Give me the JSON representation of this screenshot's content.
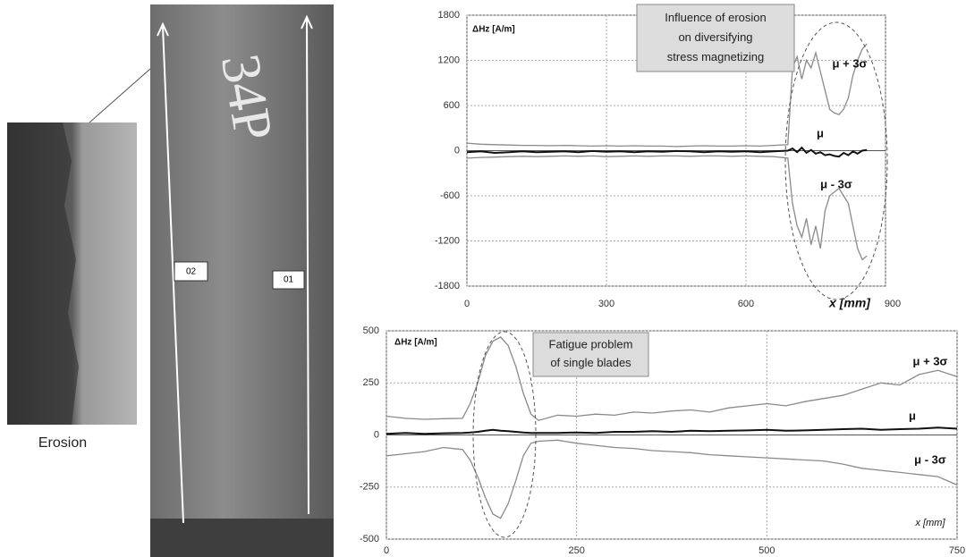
{
  "figure": {
    "caption": "Erosion",
    "marking": "34P",
    "path_labels": [
      "02",
      "01"
    ]
  },
  "chart_data": [
    {
      "type": "line",
      "ylabel": "ΔHz [A/m]",
      "xlabel": "x [mm]",
      "annotation": [
        "Influence of erosion",
        "on diversifying",
        "stress  magnetizing"
      ],
      "xlim": [
        0,
        900
      ],
      "ylim": [
        -1800,
        1800
      ],
      "xticks": [
        0,
        300,
        600,
        900
      ],
      "yticks": [
        1800,
        1200,
        600,
        0,
        -600,
        -1200,
        -1800
      ],
      "grid": true,
      "x": [
        0,
        30,
        60,
        90,
        120,
        150,
        180,
        210,
        240,
        270,
        300,
        330,
        360,
        390,
        420,
        450,
        480,
        510,
        540,
        570,
        600,
        630,
        660,
        690,
        700,
        710,
        720,
        730,
        740,
        750,
        760,
        770,
        780,
        790,
        800,
        810,
        820,
        830,
        840,
        850,
        860
      ],
      "series": [
        {
          "name": "μ + 3σ",
          "color": "#8a8a8a",
          "values": [
            100,
            85,
            80,
            75,
            70,
            70,
            65,
            70,
            65,
            60,
            65,
            60,
            65,
            60,
            60,
            55,
            60,
            65,
            60,
            60,
            65,
            60,
            70,
            80,
            1100,
            1250,
            950,
            1200,
            1100,
            1300,
            1050,
            800,
            550,
            500,
            480,
            550,
            700,
            1000,
            1200,
            1350,
            1420
          ]
        },
        {
          "name": "μ",
          "color": "#111111",
          "values": [
            -20,
            -10,
            -30,
            -20,
            -10,
            -20,
            -15,
            -10,
            -20,
            -5,
            -15,
            -10,
            -20,
            -10,
            -15,
            -5,
            -10,
            -20,
            -10,
            -15,
            -10,
            -20,
            -10,
            0,
            30,
            -20,
            40,
            -30,
            10,
            -40,
            -20,
            -60,
            -50,
            -70,
            -80,
            -30,
            -60,
            -10,
            -40,
            0,
            10
          ]
        },
        {
          "name": "μ - 3σ",
          "color": "#8a8a8a",
          "values": [
            -100,
            -90,
            -85,
            -80,
            -75,
            -80,
            -75,
            -70,
            -75,
            -70,
            -80,
            -75,
            -70,
            -75,
            -70,
            -70,
            -75,
            -70,
            -70,
            -75,
            -70,
            -75,
            -80,
            -100,
            -700,
            -1000,
            -1150,
            -900,
            -1250,
            -1000,
            -1300,
            -800,
            -600,
            -550,
            -500,
            -600,
            -700,
            -1000,
            -1300,
            -1450,
            -1400
          ]
        }
      ]
    },
    {
      "type": "line",
      "ylabel": "ΔHz [A/m]",
      "xlabel": "x [mm]",
      "annotation": [
        "Fatigue problem",
        "of single blades"
      ],
      "xlim": [
        0,
        750
      ],
      "ylim": [
        -500,
        500
      ],
      "xticks": [
        0,
        250,
        500,
        750
      ],
      "yticks": [
        500,
        250,
        0,
        -250,
        -500
      ],
      "grid": true,
      "x": [
        0,
        25,
        50,
        75,
        100,
        110,
        120,
        130,
        140,
        150,
        160,
        170,
        180,
        190,
        200,
        225,
        250,
        275,
        300,
        325,
        350,
        375,
        400,
        425,
        450,
        475,
        500,
        525,
        550,
        575,
        600,
        625,
        650,
        675,
        700,
        725,
        750
      ],
      "series": [
        {
          "name": "μ + 3σ",
          "color": "#8a8a8a",
          "values": [
            90,
            80,
            75,
            78,
            80,
            150,
            250,
            380,
            450,
            470,
            430,
            330,
            200,
            100,
            70,
            95,
            90,
            100,
            95,
            110,
            105,
            115,
            120,
            110,
            130,
            140,
            150,
            140,
            160,
            175,
            190,
            220,
            250,
            240,
            290,
            310,
            280
          ]
        },
        {
          "name": "μ",
          "color": "#111111",
          "values": [
            5,
            10,
            5,
            8,
            10,
            12,
            15,
            20,
            25,
            20,
            18,
            15,
            12,
            10,
            10,
            10,
            12,
            10,
            15,
            15,
            18,
            15,
            20,
            18,
            20,
            22,
            25,
            20,
            22,
            25,
            28,
            30,
            25,
            28,
            30,
            35,
            30
          ]
        },
        {
          "name": "μ - 3σ",
          "color": "#8a8a8a",
          "values": [
            -100,
            -90,
            -80,
            -60,
            -70,
            -120,
            -200,
            -300,
            -380,
            -400,
            -330,
            -220,
            -100,
            -40,
            -30,
            -25,
            -40,
            -50,
            -60,
            -65,
            -75,
            -80,
            -85,
            -95,
            -100,
            -105,
            -110,
            -115,
            -120,
            -125,
            -140,
            -160,
            -170,
            -180,
            -190,
            -200,
            -240
          ]
        }
      ]
    }
  ]
}
